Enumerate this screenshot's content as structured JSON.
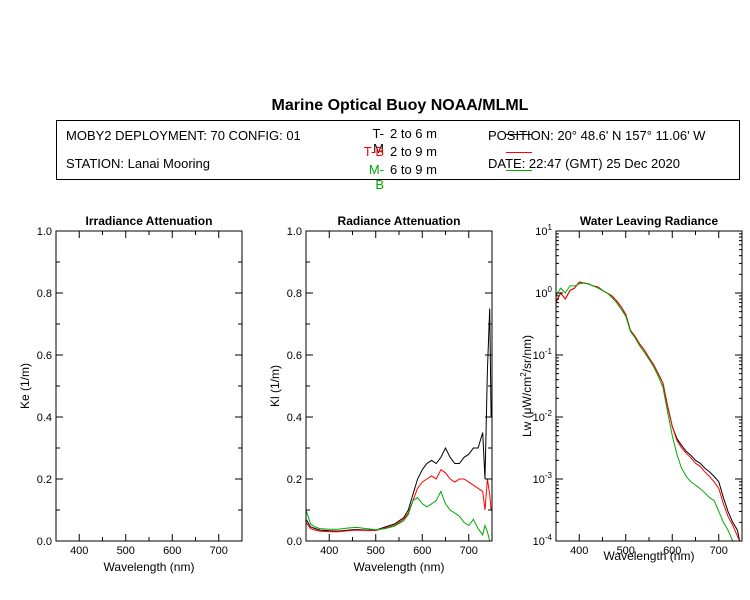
{
  "header": {
    "title": "Marine Optical Buoy NOAA/MLML",
    "deployment": "MOBY2 DEPLOYMENT: 70 CONFIG: 01",
    "station": "STATION: Lanai Mooring",
    "position": "POSITION: 20° 48.6' N   157° 11.06' W",
    "date": "DATE: 22:47 (GMT) 25 Dec 2020",
    "legend": [
      {
        "code": "T-M",
        "range": "2 to 6  m",
        "color": "#000000"
      },
      {
        "code": "T-B",
        "range": "2 to 9  m",
        "color": "#ff0000"
      },
      {
        "code": "M-B",
        "range": "6 to 9  m",
        "color": "#00aa00"
      }
    ]
  },
  "chart_data": [
    {
      "type": "line",
      "title": "Irradiance Attenuation",
      "xlabel": "Wavelength (nm)",
      "ylabel": "Ke  (1/m)",
      "xlim": [
        350,
        750
      ],
      "ylim": [
        0,
        1.0
      ],
      "xticks": [
        "400",
        "500",
        "600",
        "700"
      ],
      "yticks": [
        "0.0",
        "0.2",
        "0.4",
        "0.6",
        "0.8",
        "1.0"
      ],
      "series": []
    },
    {
      "type": "line",
      "title": "Radiance Attenuation",
      "xlabel": "Wavelength (nm)",
      "ylabel": "Kl  (1/m)",
      "xlim": [
        350,
        750
      ],
      "ylim": [
        0,
        1.0
      ],
      "xticks": [
        "400",
        "500",
        "600",
        "700"
      ],
      "yticks": [
        "0.0",
        "0.2",
        "0.4",
        "0.6",
        "0.8",
        "1.0"
      ],
      "series": [
        {
          "color": "#000000",
          "x": [
            350,
            360,
            370,
            380,
            400,
            420,
            440,
            460,
            480,
            500,
            520,
            540,
            560,
            570,
            580,
            590,
            600,
            610,
            620,
            630,
            640,
            650,
            660,
            670,
            680,
            690,
            700,
            710,
            720,
            730,
            735,
            740,
            745,
            748
          ],
          "y": [
            0.07,
            0.045,
            0.04,
            0.035,
            0.033,
            0.032,
            0.035,
            0.037,
            0.035,
            0.035,
            0.045,
            0.055,
            0.075,
            0.1,
            0.15,
            0.2,
            0.23,
            0.25,
            0.26,
            0.25,
            0.27,
            0.3,
            0.27,
            0.25,
            0.25,
            0.27,
            0.28,
            0.3,
            0.3,
            0.35,
            0.2,
            0.55,
            0.75,
            0.4
          ]
        },
        {
          "color": "#ff0000",
          "x": [
            350,
            360,
            370,
            380,
            400,
            420,
            440,
            460,
            480,
            500,
            520,
            540,
            560,
            570,
            580,
            590,
            600,
            610,
            620,
            630,
            640,
            650,
            660,
            670,
            680,
            690,
            700,
            710,
            720,
            730,
            735,
            740,
            745,
            748
          ],
          "y": [
            0.06,
            0.04,
            0.035,
            0.032,
            0.03,
            0.03,
            0.033,
            0.035,
            0.034,
            0.034,
            0.042,
            0.05,
            0.07,
            0.09,
            0.13,
            0.17,
            0.19,
            0.2,
            0.21,
            0.2,
            0.23,
            0.22,
            0.2,
            0.19,
            0.2,
            0.2,
            0.19,
            0.18,
            0.17,
            0.16,
            0.1,
            0.2,
            0.15,
            0.1
          ]
        },
        {
          "color": "#00aa00",
          "x": [
            350,
            360,
            370,
            380,
            400,
            420,
            440,
            460,
            480,
            500,
            520,
            540,
            560,
            570,
            580,
            590,
            600,
            610,
            620,
            630,
            640,
            650,
            660,
            670,
            680,
            690,
            700,
            710,
            720,
            730,
            735,
            740,
            745
          ],
          "y": [
            0.1,
            0.055,
            0.045,
            0.04,
            0.038,
            0.038,
            0.042,
            0.044,
            0.04,
            0.036,
            0.04,
            0.048,
            0.065,
            0.085,
            0.13,
            0.14,
            0.12,
            0.11,
            0.12,
            0.13,
            0.16,
            0.12,
            0.1,
            0.09,
            0.08,
            0.06,
            0.05,
            0.07,
            0.04,
            0.02,
            0.05,
            0.03,
            0.0
          ]
        }
      ]
    },
    {
      "type": "line",
      "title": "Water Leaving Radiance",
      "xlabel": "Wavelength (nm)",
      "ylabel": "Lw  (μW/cm²/sr/nm)",
      "xlim": [
        350,
        750
      ],
      "ylim": [
        0.0001,
        10
      ],
      "yscale": "log",
      "xticks": [
        "400",
        "500",
        "600",
        "700"
      ],
      "yticks": [
        "10-4",
        "10-3",
        "10-2",
        "10-1",
        "100",
        "101"
      ],
      "series": [
        {
          "color": "#000000",
          "x": [
            350,
            360,
            370,
            380,
            390,
            400,
            410,
            420,
            430,
            440,
            450,
            460,
            470,
            480,
            490,
            500,
            510,
            520,
            530,
            540,
            550,
            560,
            570,
            580,
            590,
            600,
            610,
            620,
            630,
            640,
            650,
            660,
            670,
            680,
            690,
            700,
            710,
            720,
            730,
            740,
            745
          ],
          "y": [
            0.7,
            1.0,
            0.8,
            1.1,
            1.2,
            1.5,
            1.45,
            1.4,
            1.3,
            1.25,
            1.1,
            1.0,
            0.9,
            0.75,
            0.6,
            0.45,
            0.25,
            0.2,
            0.15,
            0.12,
            0.09,
            0.07,
            0.05,
            0.035,
            0.015,
            0.007,
            0.0045,
            0.0035,
            0.0028,
            0.0024,
            0.002,
            0.0018,
            0.0015,
            0.0013,
            0.0011,
            0.0009,
            0.0005,
            0.0003,
            0.0002,
            0.00015,
            0.0001
          ]
        },
        {
          "color": "#ff0000",
          "x": [
            350,
            360,
            370,
            380,
            390,
            400,
            410,
            420,
            430,
            440,
            450,
            460,
            470,
            480,
            490,
            500,
            510,
            520,
            530,
            540,
            550,
            560,
            570,
            580,
            590,
            600,
            610,
            620,
            630,
            640,
            650,
            660,
            670,
            680,
            690,
            700,
            710,
            720,
            730,
            740,
            745
          ],
          "y": [
            0.7,
            1.0,
            0.8,
            1.1,
            1.2,
            1.5,
            1.45,
            1.4,
            1.3,
            1.25,
            1.1,
            1.0,
            0.9,
            0.75,
            0.6,
            0.45,
            0.25,
            0.2,
            0.15,
            0.12,
            0.09,
            0.07,
            0.05,
            0.035,
            0.015,
            0.007,
            0.0042,
            0.0032,
            0.0026,
            0.0022,
            0.0018,
            0.0016,
            0.0013,
            0.0011,
            0.0009,
            0.0007,
            0.0004,
            0.00025,
            0.00018,
            0.00012,
            0.0001
          ]
        },
        {
          "color": "#00aa00",
          "x": [
            350,
            360,
            370,
            380,
            390,
            400,
            410,
            420,
            430,
            440,
            450,
            460,
            470,
            480,
            490,
            500,
            510,
            520,
            530,
            540,
            550,
            560,
            570,
            580,
            590,
            600,
            610,
            620,
            630,
            640,
            650,
            660,
            670,
            680,
            690,
            700,
            710,
            720,
            730,
            735
          ],
          "y": [
            0.9,
            1.2,
            1.0,
            1.3,
            1.3,
            1.4,
            1.45,
            1.4,
            1.3,
            1.2,
            1.1,
            1.0,
            0.85,
            0.7,
            0.55,
            0.42,
            0.24,
            0.19,
            0.14,
            0.11,
            0.085,
            0.065,
            0.045,
            0.03,
            0.012,
            0.005,
            0.0025,
            0.0015,
            0.0011,
            0.0009,
            0.0008,
            0.0007,
            0.0006,
            0.0005,
            0.00045,
            0.0003,
            0.0002,
            0.00015,
            0.0001,
            0.0001
          ]
        }
      ]
    }
  ]
}
